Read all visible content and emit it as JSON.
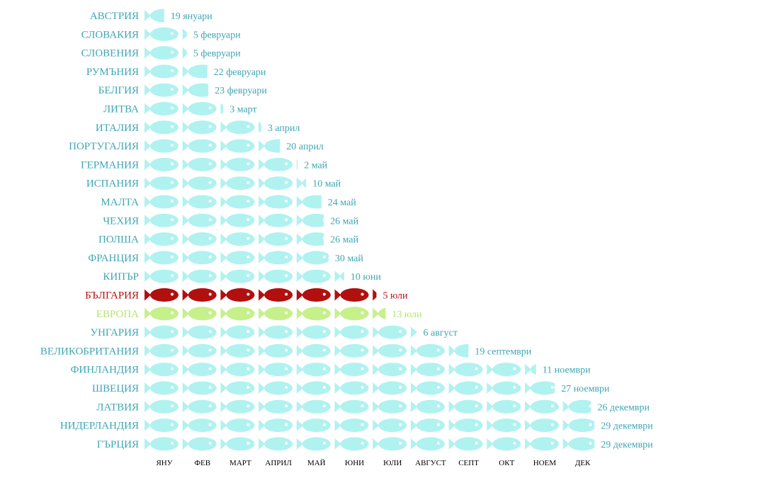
{
  "chart_data": {
    "type": "bar",
    "unit": "months",
    "x_ticks": [
      "ЯНУ",
      "ФЕВ",
      "МАРТ",
      "АПРИЛ",
      "МАЙ",
      "ЮНИ",
      "ЮЛИ",
      "АВГУСТ",
      "СЕПТ",
      "ОКТ",
      "НОЕМ",
      "ДЕК"
    ],
    "xlim": [
      0,
      12
    ],
    "rows": [
      {
        "country": "АВСТРИЯ",
        "date": "19 януари",
        "value": 0.6,
        "style": "default"
      },
      {
        "country": "СЛОВАКИЯ",
        "date": "5 февруари",
        "value": 1.15,
        "style": "default"
      },
      {
        "country": "СЛОВЕНИЯ",
        "date": "5 февруари",
        "value": 1.15,
        "style": "default"
      },
      {
        "country": "РУМЪНИЯ",
        "date": "22 февруари",
        "value": 1.75,
        "style": "default"
      },
      {
        "country": "БЕЛГИЯ",
        "date": "23 февруари",
        "value": 1.78,
        "style": "default"
      },
      {
        "country": "ЛИТВА",
        "date": "3 март",
        "value": 2.1,
        "style": "default"
      },
      {
        "country": "ИТАЛИЯ",
        "date": "3 април",
        "value": 3.1,
        "style": "default"
      },
      {
        "country": "ПОРТУГАЛИЯ",
        "date": "20 април",
        "value": 3.65,
        "style": "default"
      },
      {
        "country": "ГЕРМАНИЯ",
        "date": "2 май",
        "value": 4.05,
        "style": "default"
      },
      {
        "country": "ИСПАНИЯ",
        "date": "10 май",
        "value": 4.3,
        "style": "default"
      },
      {
        "country": "МАЛТА",
        "date": "24 май",
        "value": 4.75,
        "style": "default"
      },
      {
        "country": "ЧЕХИЯ",
        "date": "26 май",
        "value": 4.82,
        "style": "default"
      },
      {
        "country": "ПОЛША",
        "date": "26 май",
        "value": 4.82,
        "style": "default"
      },
      {
        "country": "ФРАНЦИЯ",
        "date": "30 май",
        "value": 4.96,
        "style": "default"
      },
      {
        "country": "КИПЪР",
        "date": "10 юни",
        "value": 5.3,
        "style": "default"
      },
      {
        "country": "БЪЛГАРИЯ",
        "date": "5 юли",
        "value": 6.13,
        "style": "highlight"
      },
      {
        "country": "ЕВРОПА",
        "date": "13 юли",
        "value": 6.4,
        "style": "average"
      },
      {
        "country": "УНГАРИЯ",
        "date": "6 август",
        "value": 7.2,
        "style": "default"
      },
      {
        "country": "ВЕЛИКОБРИТАНИЯ",
        "date": "19 септември",
        "value": 8.6,
        "style": "default"
      },
      {
        "country": "ФИНЛАНДИЯ",
        "date": "11 ноември",
        "value": 10.35,
        "style": "default"
      },
      {
        "country": "ШВЕЦИЯ",
        "date": "27 ноември",
        "value": 10.9,
        "style": "default"
      },
      {
        "country": "ЛАТВИЯ",
        "date": "26 декември",
        "value": 11.85,
        "style": "default"
      },
      {
        "country": "НИДЕРЛАНДИЯ",
        "date": "29 декември",
        "value": 11.95,
        "style": "default"
      },
      {
        "country": "ГЪРЦИЯ",
        "date": "29 декември",
        "value": 11.95,
        "style": "default"
      }
    ]
  },
  "colors": {
    "default_fish": "#b0f2f0",
    "default_text": "#3fa6b4",
    "highlight_fish": "#b20f0f",
    "highlight_text": "#b20f0f",
    "average_fish": "#c6f08a",
    "average_text": "#b6e36f",
    "eye": "#ffffff"
  },
  "icon": "fish-icon"
}
